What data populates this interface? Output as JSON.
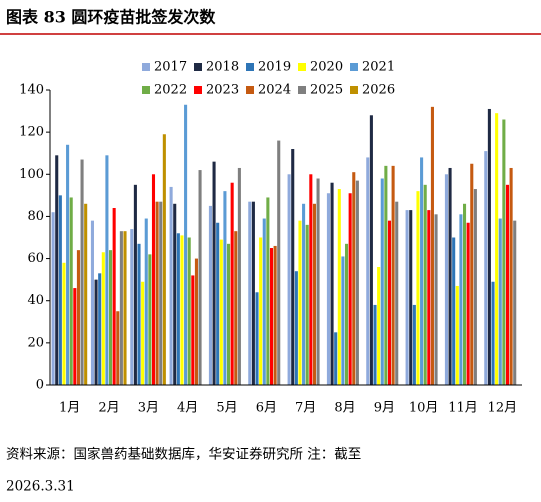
{
  "title": "图表 83 圆环疫苗批签发次数",
  "chart_data": {
    "type": "bar",
    "categories": [
      "1月",
      "2月",
      "3月",
      "4月",
      "5月",
      "6月",
      "7月",
      "8月",
      "9月",
      "10月",
      "11月",
      "12月"
    ],
    "series": [
      {
        "name": "2017",
        "color": "#8faadc",
        "values": [
          82,
          78,
          74,
          94,
          85,
          87,
          100,
          91,
          108,
          83,
          100,
          111
        ]
      },
      {
        "name": "2018",
        "color": "#1f2a44",
        "values": [
          109,
          50,
          95,
          86,
          106,
          87,
          112,
          96,
          128,
          83,
          103,
          131
        ]
      },
      {
        "name": "2019",
        "color": "#2e75b6",
        "values": [
          90,
          53,
          67,
          72,
          77,
          44,
          54,
          25,
          38,
          38,
          70,
          49
        ]
      },
      {
        "name": "2020",
        "color": "#ffff00",
        "values": [
          58,
          63,
          49,
          71,
          69,
          70,
          78,
          93,
          56,
          92,
          47,
          129
        ]
      },
      {
        "name": "2021",
        "color": "#5b9bd5",
        "values": [
          114,
          109,
          79,
          133,
          92,
          79,
          86,
          61,
          98,
          108,
          81,
          79
        ]
      },
      {
        "name": "2022",
        "color": "#70ad47",
        "values": [
          89,
          64,
          62,
          70,
          67,
          89,
          76,
          67,
          104,
          95,
          86,
          126
        ]
      },
      {
        "name": "2023",
        "color": "#ff0000",
        "values": [
          46,
          84,
          100,
          52,
          96,
          65,
          100,
          91,
          78,
          83,
          77,
          95
        ]
      },
      {
        "name": "2024",
        "color": "#c55a11",
        "values": [
          64,
          35,
          87,
          60,
          73,
          66,
          86,
          101,
          104,
          132,
          105,
          103
        ]
      },
      {
        "name": "2025",
        "color": "#7f7f7f",
        "values": [
          107,
          73,
          87,
          102,
          103,
          116,
          98,
          97,
          87,
          81,
          93,
          78
        ]
      },
      {
        "name": "2026",
        "color": "#bf9000",
        "values": [
          86,
          73,
          119,
          null,
          null,
          null,
          null,
          null,
          null,
          null,
          null,
          null
        ]
      }
    ],
    "ylim": [
      0,
      140
    ],
    "yticks": [
      0,
      20,
      40,
      60,
      80,
      100,
      120,
      140
    ],
    "grid": false
  },
  "source": "资料来源：国家兽药基础数据库，华安证券研究所 注：截至",
  "source_date": "2026.3.31"
}
